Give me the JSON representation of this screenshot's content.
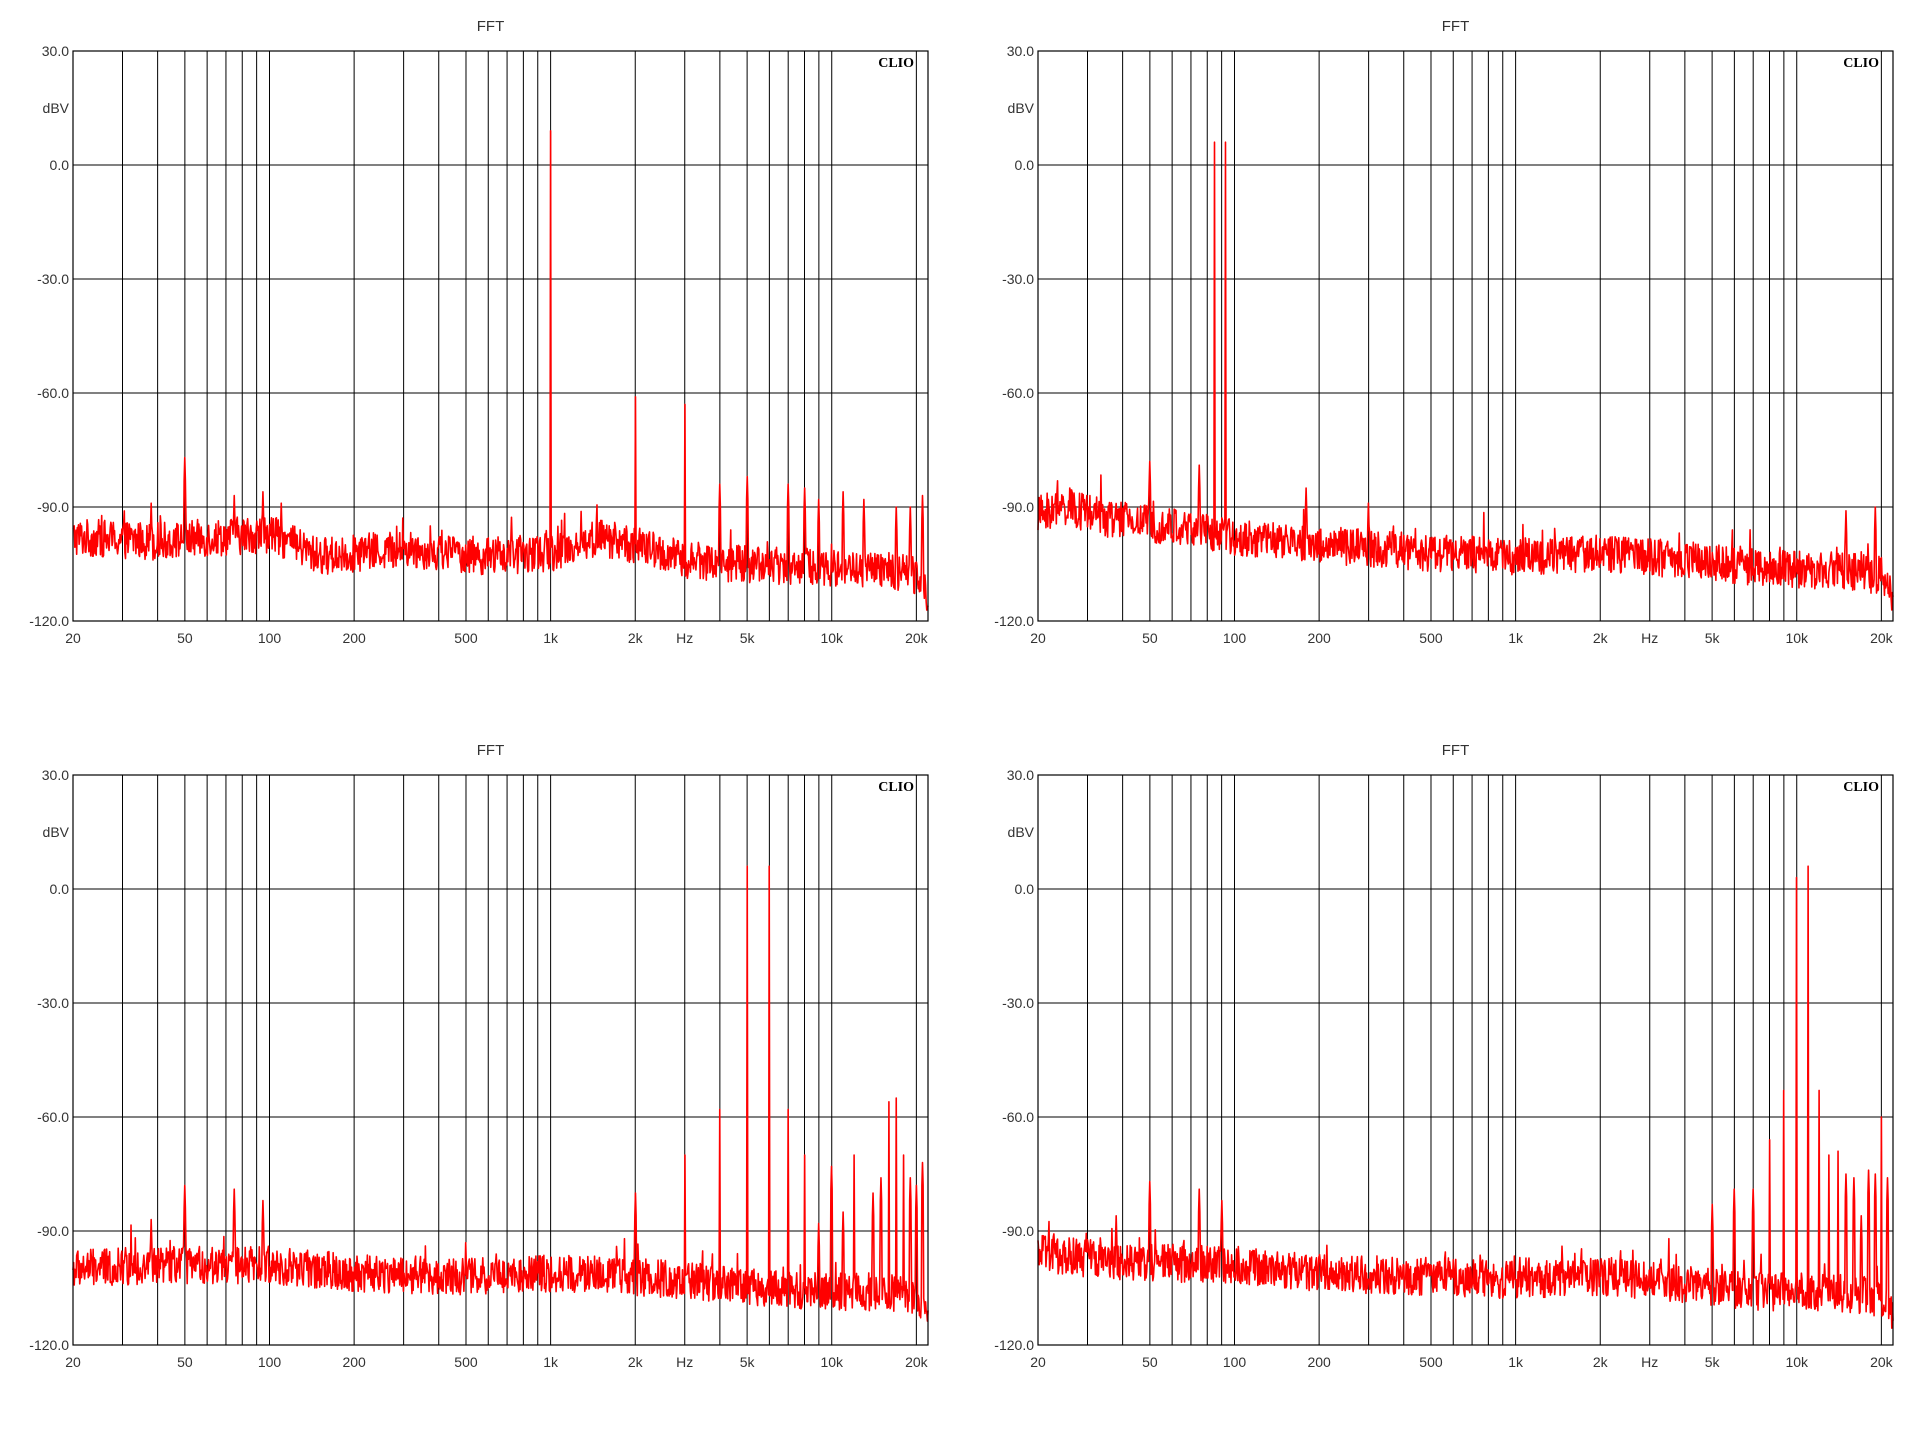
{
  "colors": {
    "trace": "#ff0000",
    "grid": "#000000",
    "background": "#ffffff"
  },
  "chart_data": [
    {
      "type": "line",
      "title": "FFT",
      "brand": "CLIO",
      "ylabel": "dBV",
      "xlabel": "Hz",
      "xscale": "log",
      "xlim": [
        20,
        22000
      ],
      "ylim": [
        -120,
        30
      ],
      "yticks": [
        "30.0",
        "0.0",
        "-30.0",
        "-60.0",
        "-90.0",
        "-120.0"
      ],
      "xticks": [
        "20",
        "50",
        "100",
        "200",
        "500",
        "1k",
        "2k",
        "Hz",
        "5k",
        "10k",
        "20k"
      ],
      "grid": true,
      "series": [
        {
          "noise": [
            [
              20,
              -98
            ],
            [
              40,
              -99
            ],
            [
              100,
              -97
            ],
            [
              150,
              -103
            ],
            [
              300,
              -101
            ],
            [
              600,
              -103
            ],
            [
              1000,
              -102
            ],
            [
              1500,
              -98
            ],
            [
              2000,
              -100
            ],
            [
              3000,
              -104
            ],
            [
              5000,
              -105
            ],
            [
              10000,
              -106
            ],
            [
              16000,
              -107
            ],
            [
              21000,
              -108
            ],
            [
              22000,
              -114
            ]
          ],
          "peaks": [
            [
              38,
              -89
            ],
            [
              50,
              -77
            ],
            [
              75,
              -87
            ],
            [
              95,
              -86
            ],
            [
              110,
              -89
            ],
            [
              1000,
              9
            ],
            [
              2000,
              -61
            ],
            [
              3000,
              -63
            ],
            [
              4000,
              -84
            ],
            [
              5000,
              -82
            ],
            [
              7000,
              -84
            ],
            [
              8000,
              -85
            ],
            [
              9000,
              -88
            ],
            [
              11000,
              -86
            ],
            [
              13000,
              -88
            ],
            [
              17000,
              -90
            ],
            [
              19000,
              -90
            ],
            [
              21000,
              -87
            ]
          ]
        }
      ]
    },
    {
      "type": "line",
      "title": "FFT",
      "brand": "CLIO",
      "ylabel": "dBV",
      "xlabel": "Hz",
      "xscale": "log",
      "xlim": [
        20,
        22000
      ],
      "ylim": [
        -120,
        30
      ],
      "yticks": [
        "30.0",
        "0.0",
        "-30.0",
        "-60.0",
        "-90.0",
        "-120.0"
      ],
      "xticks": [
        "20",
        "50",
        "100",
        "200",
        "500",
        "1k",
        "2k",
        "Hz",
        "5k",
        "10k",
        "20k"
      ],
      "grid": true,
      "series": [
        {
          "noise": [
            [
              20,
              -92
            ],
            [
              25,
              -90
            ],
            [
              35,
              -93
            ],
            [
              60,
              -95
            ],
            [
              100,
              -98
            ],
            [
              200,
              -100
            ],
            [
              500,
              -102
            ],
            [
              1000,
              -103
            ],
            [
              2000,
              -102
            ],
            [
              4000,
              -104
            ],
            [
              8000,
              -106
            ],
            [
              15000,
              -107
            ],
            [
              20000,
              -108
            ],
            [
              22000,
              -113
            ]
          ],
          "peaks": [
            [
              26,
              -85
            ],
            [
              50,
              -78
            ],
            [
              75,
              -79
            ],
            [
              85,
              6
            ],
            [
              93,
              6
            ],
            [
              180,
              -85
            ],
            [
              300,
              -89
            ],
            [
              15000,
              -91
            ],
            [
              19000,
              -90
            ]
          ]
        }
      ]
    },
    {
      "type": "line",
      "title": "FFT",
      "brand": "CLIO",
      "ylabel": "dBV",
      "xlabel": "Hz",
      "xscale": "log",
      "xlim": [
        20,
        22000
      ],
      "ylim": [
        -120,
        30
      ],
      "yticks": [
        "30.0",
        "0.0",
        "-30.0",
        "-60.0",
        "-90.0",
        "-120.0"
      ],
      "xticks": [
        "20",
        "50",
        "100",
        "200",
        "500",
        "1k",
        "2k",
        "Hz",
        "5k",
        "10k",
        "20k"
      ],
      "grid": true,
      "series": [
        {
          "noise": [
            [
              20,
              -100
            ],
            [
              40,
              -99
            ],
            [
              100,
              -99
            ],
            [
              200,
              -101
            ],
            [
              500,
              -102
            ],
            [
              1000,
              -101
            ],
            [
              2000,
              -102
            ],
            [
              4000,
              -104
            ],
            [
              6000,
              -105
            ],
            [
              10000,
              -106
            ],
            [
              15000,
              -106
            ],
            [
              21000,
              -108
            ],
            [
              22000,
              -114
            ]
          ],
          "peaks": [
            [
              38,
              -87
            ],
            [
              50,
              -78
            ],
            [
              75,
              -79
            ],
            [
              95,
              -82
            ],
            [
              2000,
              -80
            ],
            [
              3000,
              -70
            ],
            [
              4000,
              -58
            ],
            [
              5000,
              6
            ],
            [
              6000,
              6
            ],
            [
              7000,
              -58
            ],
            [
              8000,
              -70
            ],
            [
              9000,
              -88
            ],
            [
              10000,
              -73
            ],
            [
              11000,
              -85
            ],
            [
              12000,
              -70
            ],
            [
              14000,
              -80
            ],
            [
              15000,
              -76
            ],
            [
              16000,
              -56
            ],
            [
              17000,
              -55
            ],
            [
              18000,
              -70
            ],
            [
              19000,
              -76
            ],
            [
              20000,
              -78
            ],
            [
              21000,
              -72
            ]
          ]
        }
      ]
    },
    {
      "type": "line",
      "title": "FFT",
      "brand": "CLIO",
      "ylabel": "dBV",
      "xlabel": "Hz",
      "xscale": "log",
      "xlim": [
        20,
        22000
      ],
      "ylim": [
        -120,
        30
      ],
      "yticks": [
        "30.0",
        "0.0",
        "-30.0",
        "-60.0",
        "-90.0",
        "-120.0"
      ],
      "xticks": [
        "20",
        "50",
        "100",
        "200",
        "500",
        "1k",
        "2k",
        "Hz",
        "5k",
        "10k",
        "20k"
      ],
      "grid": true,
      "series": [
        {
          "noise": [
            [
              20,
              -96
            ],
            [
              40,
              -98
            ],
            [
              100,
              -99
            ],
            [
              200,
              -101
            ],
            [
              500,
              -102
            ],
            [
              1000,
              -103
            ],
            [
              2000,
              -102
            ],
            [
              4000,
              -104
            ],
            [
              7000,
              -106
            ],
            [
              12000,
              -106
            ],
            [
              18000,
              -107
            ],
            [
              21000,
              -108
            ],
            [
              22000,
              -113
            ]
          ],
          "peaks": [
            [
              38,
              -86
            ],
            [
              50,
              -77
            ],
            [
              75,
              -79
            ],
            [
              90,
              -82
            ],
            [
              5000,
              -83
            ],
            [
              6000,
              -79
            ],
            [
              7000,
              -79
            ],
            [
              8000,
              -66
            ],
            [
              9000,
              -53
            ],
            [
              10000,
              3
            ],
            [
              11000,
              6
            ],
            [
              12000,
              -53
            ],
            [
              13000,
              -70
            ],
            [
              14000,
              -69
            ],
            [
              15000,
              -75
            ],
            [
              16000,
              -76
            ],
            [
              17000,
              -86
            ],
            [
              18000,
              -74
            ],
            [
              19000,
              -75
            ],
            [
              20000,
              -60
            ],
            [
              21000,
              -76
            ]
          ]
        }
      ]
    }
  ]
}
